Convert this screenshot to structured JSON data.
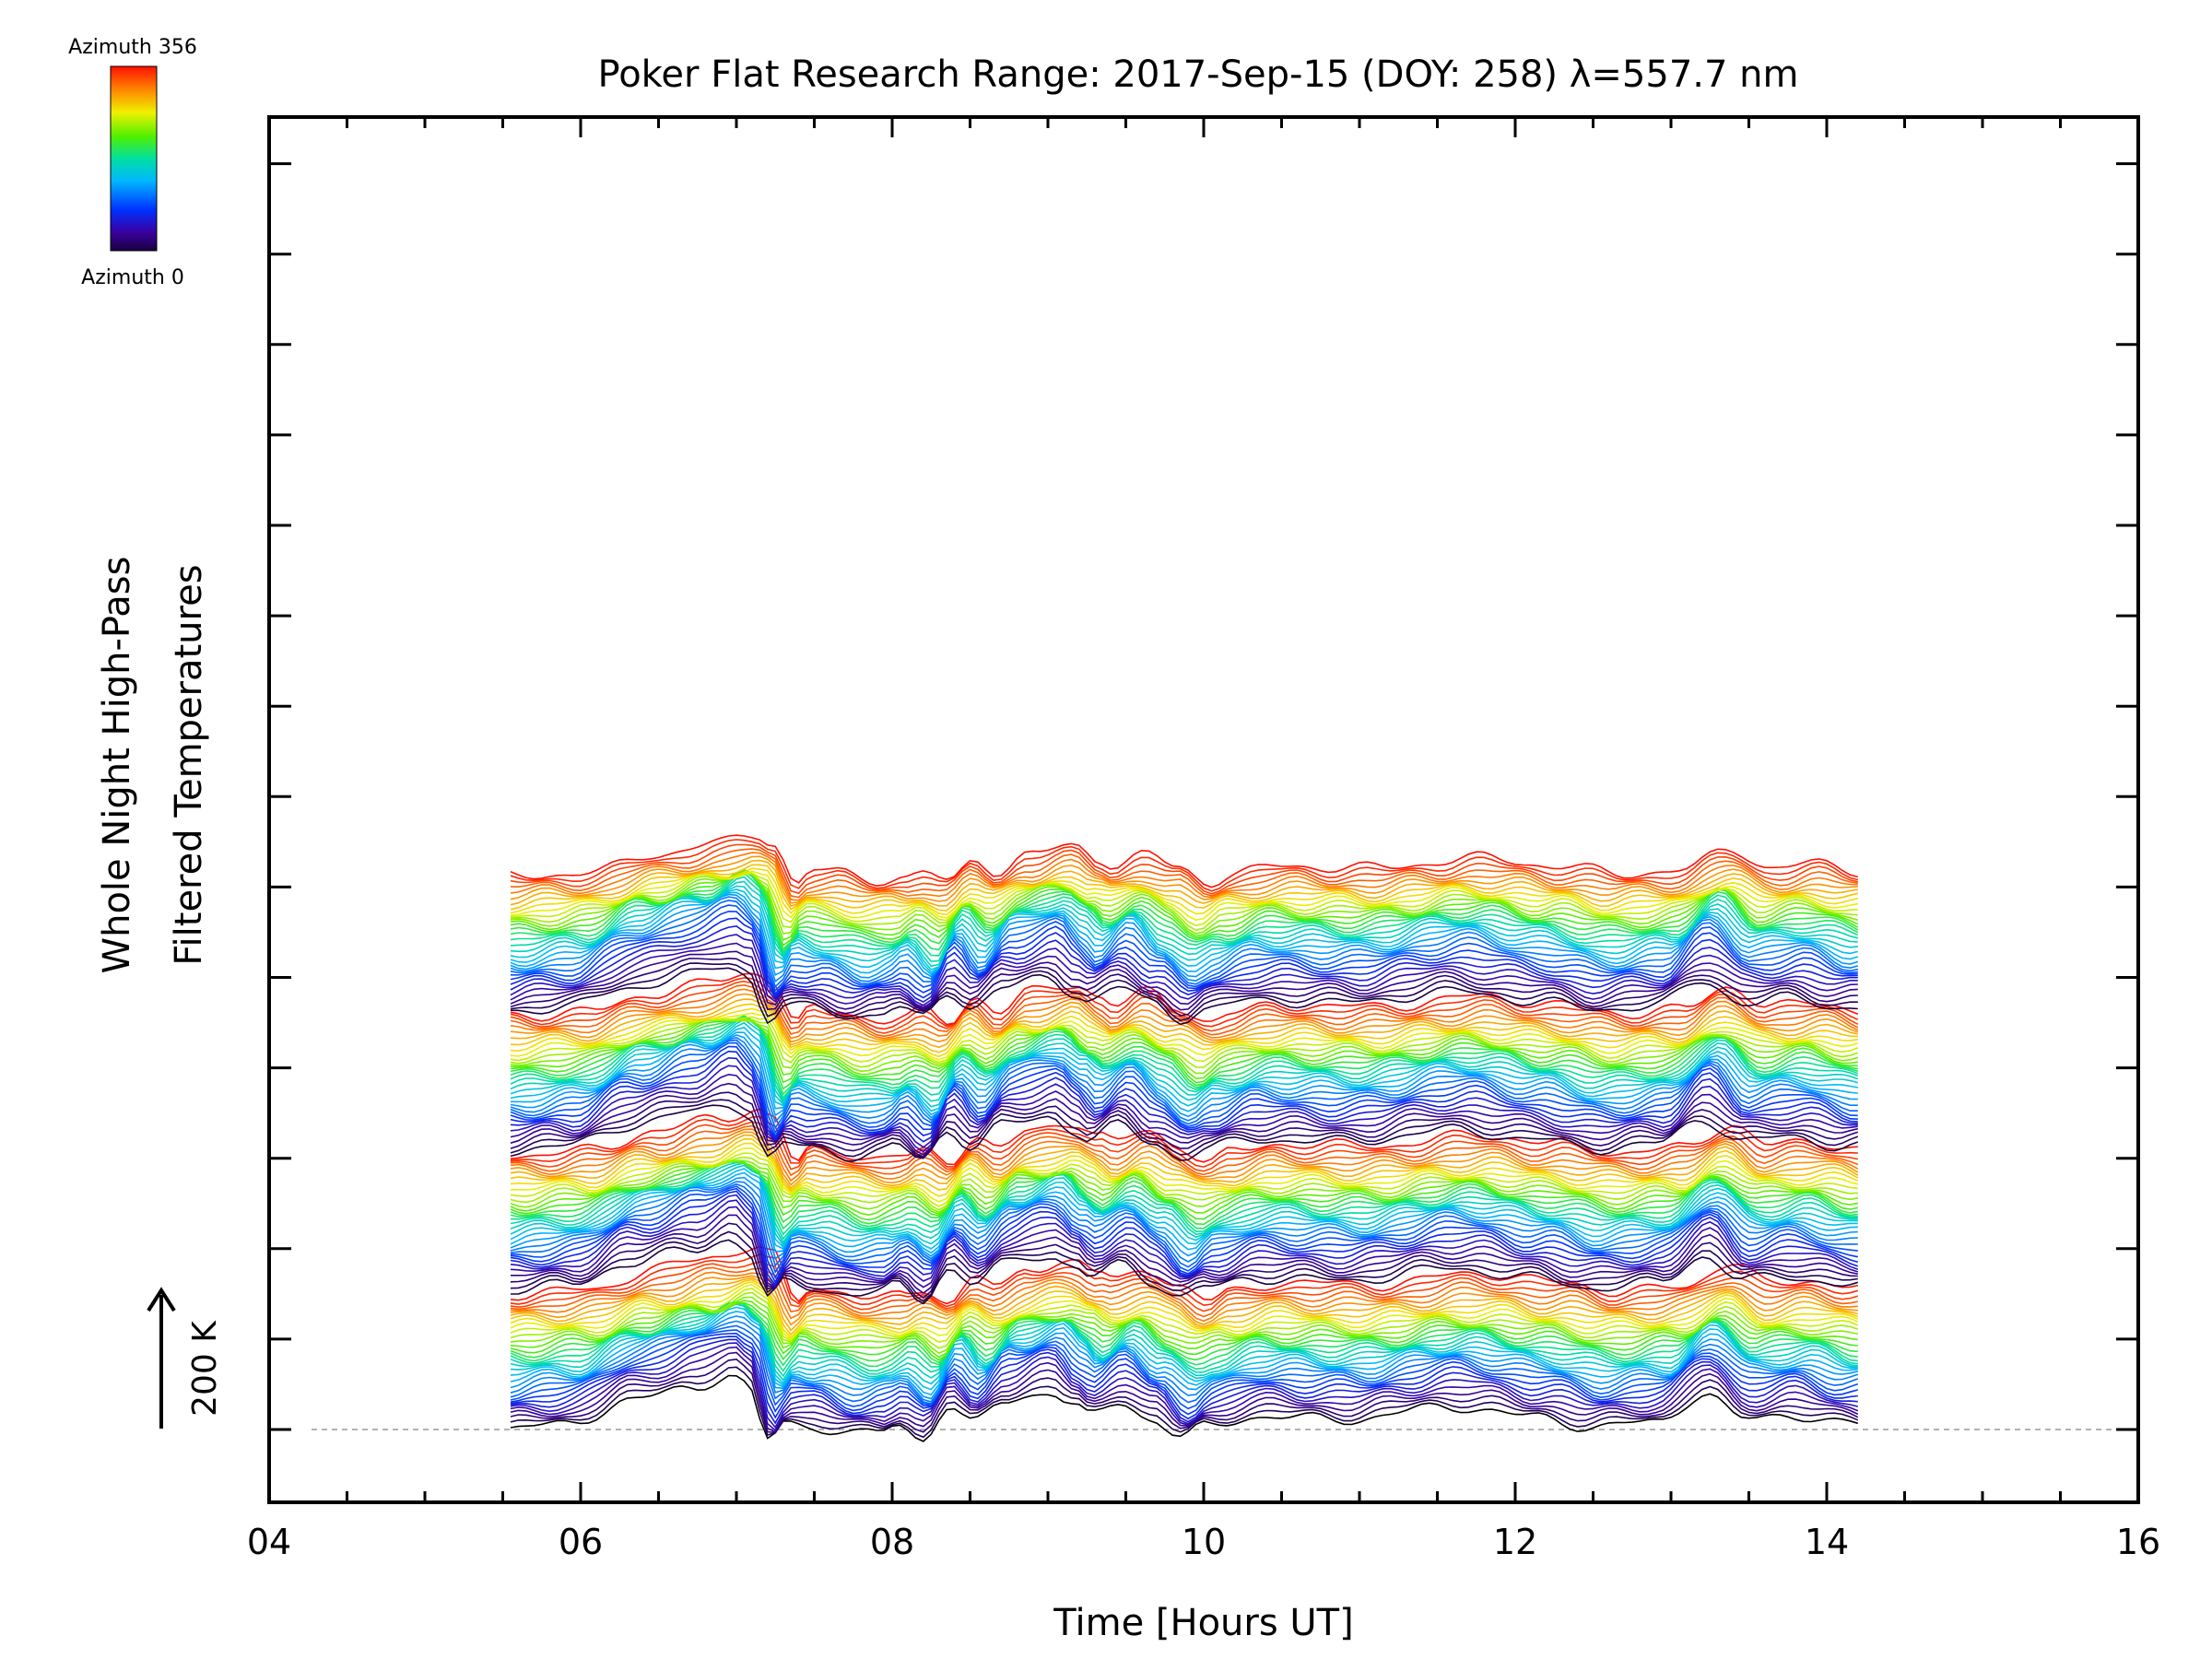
{
  "chart_data": {
    "type": "line",
    "title": "Poker Flat Research Range: 2017-Sep-15 (DOY: 258) λ=557.7 nm",
    "xlabel": "Time [Hours UT]",
    "ylabel_lines": [
      "Whole Night High-Pass",
      "Filtered Temperatures"
    ],
    "xlim": [
      4,
      16
    ],
    "x_ticks": [
      4,
      6,
      8,
      10,
      12,
      14,
      16
    ],
    "x_tick_labels": [
      "04",
      "06",
      "08",
      "10",
      "12",
      "14",
      "16"
    ],
    "time_range": [
      5.55,
      14.2
    ],
    "trace_count": 144,
    "trace_offset_K": 6.0,
    "scale_bar": {
      "label": "200 K",
      "value_K": 200
    },
    "colorbar": {
      "top_label": "Azimuth 356",
      "bottom_label": "Azimuth 0",
      "min": 0,
      "max": 356
    },
    "features": [
      {
        "hour": 5.55,
        "amp": 0
      },
      {
        "hour": 6.0,
        "amp": 10
      },
      {
        "hour": 6.4,
        "amp": 55
      },
      {
        "hour": 6.8,
        "amp": 82
      },
      {
        "hour": 7.05,
        "amp": 105
      },
      {
        "hour": 7.15,
        "amp": 85
      },
      {
        "hour": 7.3,
        "amp": -20
      },
      {
        "hour": 7.4,
        "amp": 15
      },
      {
        "hour": 7.55,
        "amp": 8
      },
      {
        "hour": 7.85,
        "amp": -10
      },
      {
        "hour": 8.0,
        "amp": -5
      },
      {
        "hour": 8.12,
        "amp": 10
      },
      {
        "hour": 8.28,
        "amp": -18
      },
      {
        "hour": 8.45,
        "amp": 45
      },
      {
        "hour": 8.6,
        "amp": 10
      },
      {
        "hour": 8.8,
        "amp": 55
      },
      {
        "hour": 9.1,
        "amp": 75
      },
      {
        "hour": 9.25,
        "amp": 45
      },
      {
        "hour": 9.35,
        "amp": 25
      },
      {
        "hour": 9.55,
        "amp": 55
      },
      {
        "hour": 9.75,
        "amp": 20
      },
      {
        "hour": 9.95,
        "amp": -15
      },
      {
        "hour": 10.1,
        "amp": 5
      },
      {
        "hour": 10.4,
        "amp": 25
      },
      {
        "hour": 11.0,
        "amp": 20
      },
      {
        "hour": 11.7,
        "amp": 45
      },
      {
        "hour": 12.2,
        "amp": 25
      },
      {
        "hour": 12.6,
        "amp": 5
      },
      {
        "hour": 13.0,
        "amp": 15
      },
      {
        "hour": 13.3,
        "amp": 70
      },
      {
        "hour": 13.55,
        "amp": 20
      },
      {
        "hour": 13.85,
        "amp": 30
      },
      {
        "hour": 14.2,
        "amp": 10
      }
    ]
  }
}
